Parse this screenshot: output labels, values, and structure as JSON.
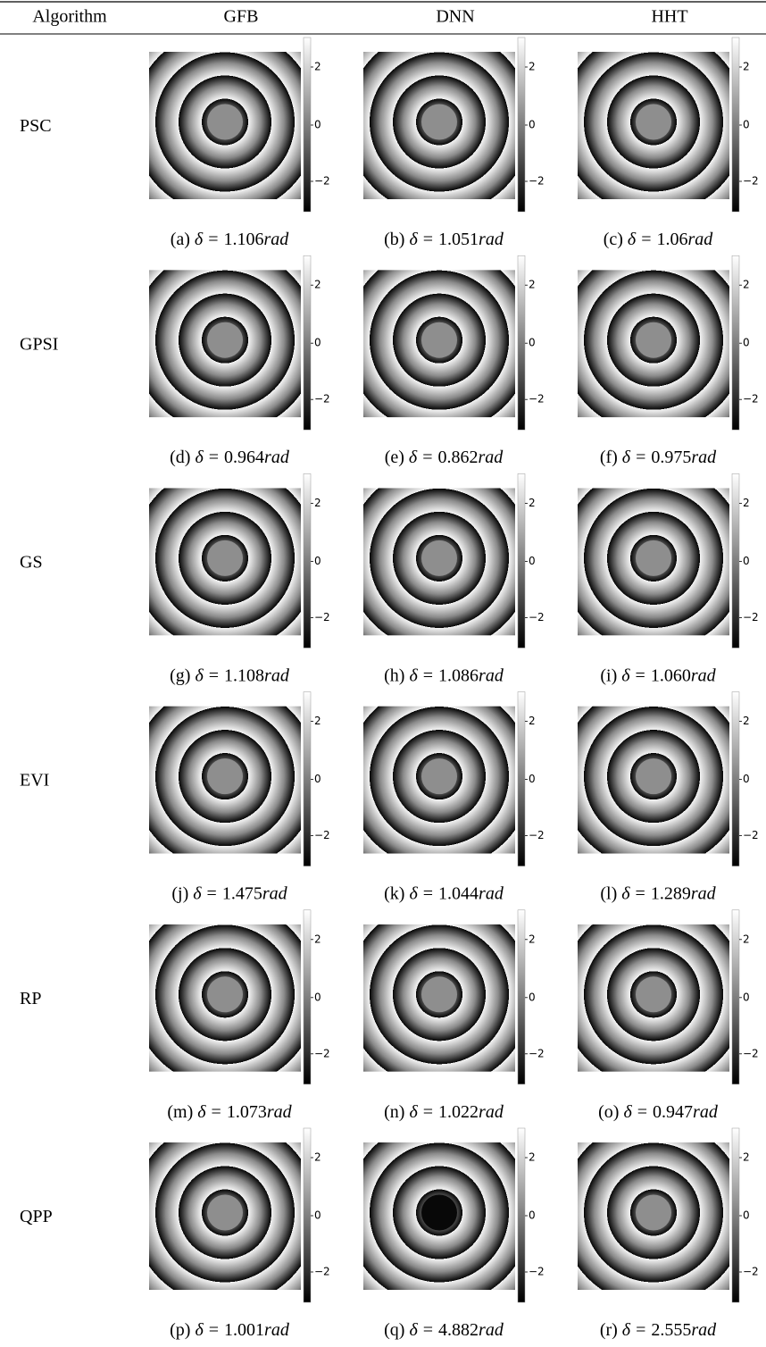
{
  "table": {
    "header": [
      "Algorithm",
      "GFB",
      "DNN",
      "HHT"
    ],
    "delta": "δ",
    "equals": "=",
    "unit": "rad",
    "colorbar_ticks": [
      "2",
      "0",
      "−2"
    ],
    "rows": [
      {
        "label": "PSC",
        "cells": [
          {
            "tag": "(a)",
            "value": "1.106"
          },
          {
            "tag": "(b)",
            "value": "1.051"
          },
          {
            "tag": "(c)",
            "value": "1.06"
          }
        ]
      },
      {
        "label": "GPSI",
        "cells": [
          {
            "tag": "(d)",
            "value": "0.964"
          },
          {
            "tag": "(e)",
            "value": "0.862"
          },
          {
            "tag": "(f)",
            "value": "0.975"
          }
        ]
      },
      {
        "label": "GS",
        "cells": [
          {
            "tag": "(g)",
            "value": "1.108"
          },
          {
            "tag": "(h)",
            "value": "1.086"
          },
          {
            "tag": "(i)",
            "value": "1.060"
          }
        ]
      },
      {
        "label": "EVI",
        "cells": [
          {
            "tag": "(j)",
            "value": "1.475"
          },
          {
            "tag": "(k)",
            "value": "1.044"
          },
          {
            "tag": "(l)",
            "value": "1.289"
          }
        ]
      },
      {
        "label": "RP",
        "cells": [
          {
            "tag": "(m)",
            "value": "1.073"
          },
          {
            "tag": "(n)",
            "value": "1.022"
          },
          {
            "tag": "(o)",
            "value": "0.947"
          }
        ]
      },
      {
        "label": "QPP",
        "cells": [
          {
            "tag": "(p)",
            "value": "1.001"
          },
          {
            "tag": "(q)",
            "value": "4.882"
          },
          {
            "tag": "(r)",
            "value": "2.555"
          }
        ]
      }
    ]
  }
}
